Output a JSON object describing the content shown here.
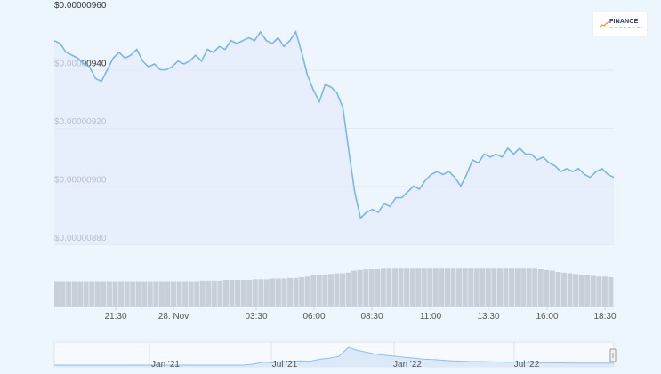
{
  "chart_data": {
    "type": "line",
    "y_ticks": [
      "$0.00000960",
      "$0.00000940",
      "$0.00000920",
      "$0.00000900",
      "$0.00000880"
    ],
    "y_values": [
      9.6e-06,
      9.4e-06,
      9.2e-06,
      9e-06,
      8.8e-06
    ],
    "ylim": [
      8.8e-06,
      9.6e-06
    ],
    "x_ticks": [
      "21:30",
      "28. Nov",
      "03:30",
      "06:00",
      "08:30",
      "11:00",
      "13:30",
      "16:00",
      "18:30"
    ],
    "navigator_ticks": [
      "Jan '21",
      "Jul '21",
      "Jan '22",
      "Jul '22"
    ],
    "series": [
      {
        "color": "#7cb5ec",
        "values": [
          9.5e-06,
          9.49e-06,
          9.46e-06,
          9.45e-06,
          9.44e-06,
          9.42e-06,
          9.41e-06,
          9.37e-06,
          9.36e-06,
          9.4e-06,
          9.44e-06,
          9.46e-06,
          9.44e-06,
          9.45e-06,
          9.47e-06,
          9.43e-06,
          9.41e-06,
          9.42e-06,
          9.4e-06,
          9.4e-06,
          9.41e-06,
          9.43e-06,
          9.42e-06,
          9.43e-06,
          9.45e-06,
          9.43e-06,
          9.47e-06,
          9.46e-06,
          9.48e-06,
          9.47e-06,
          9.5e-06,
          9.49e-06,
          9.5e-06,
          9.51e-06,
          9.5e-06,
          9.53e-06,
          9.5e-06,
          9.49e-06,
          9.51e-06,
          9.48e-06,
          9.5e-06,
          9.53e-06,
          9.46e-06,
          9.38e-06,
          9.33e-06,
          9.29e-06,
          9.35e-06,
          9.34e-06,
          9.32e-06,
          9.27e-06,
          9.12e-06,
          8.98e-06,
          8.89e-06,
          8.91e-06,
          8.92e-06,
          8.91e-06,
          8.94e-06,
          8.93e-06,
          8.96e-06,
          8.96e-06,
          8.98e-06,
          9e-06,
          8.99e-06,
          9.02e-06,
          9.04e-06,
          9.05e-06,
          9.04e-06,
          9.05e-06,
          9.03e-06,
          9e-06,
          9.04e-06,
          9.09e-06,
          9.08e-06,
          9.11e-06,
          9.1e-06,
          9.11e-06,
          9.1e-06,
          9.13e-06,
          9.11e-06,
          9.13e-06,
          9.11e-06,
          9.11e-06,
          9.09e-06,
          9.1e-06,
          9.08e-06,
          9.07e-06,
          9.05e-06,
          9.06e-06,
          9.05e-06,
          9.06e-06,
          9.04e-06,
          9.03e-06,
          9.05e-06,
          9.06e-06,
          9.04e-06,
          9.03e-06
        ],
        "volume": [
          0.38,
          0.38,
          0.38,
          0.38,
          0.38,
          0.38,
          0.38,
          0.38,
          0.38,
          0.38,
          0.38,
          0.38,
          0.38,
          0.38,
          0.38,
          0.38,
          0.38,
          0.38,
          0.38,
          0.38,
          0.38,
          0.38,
          0.38,
          0.38,
          0.38,
          0.39,
          0.39,
          0.39,
          0.39,
          0.4,
          0.4,
          0.4,
          0.4,
          0.4,
          0.41,
          0.41,
          0.41,
          0.42,
          0.42,
          0.42,
          0.43,
          0.43,
          0.44,
          0.45,
          0.47,
          0.48,
          0.48,
          0.49,
          0.5,
          0.5,
          0.51,
          0.54,
          0.55,
          0.56,
          0.56,
          0.56,
          0.57,
          0.57,
          0.57,
          0.57,
          0.57,
          0.57,
          0.57,
          0.57,
          0.57,
          0.57,
          0.57,
          0.57,
          0.57,
          0.57,
          0.57,
          0.57,
          0.57,
          0.57,
          0.57,
          0.57,
          0.57,
          0.57,
          0.57,
          0.57,
          0.57,
          0.57,
          0.57,
          0.56,
          0.55,
          0.54,
          0.52,
          0.51,
          0.5,
          0.49,
          0.48,
          0.47,
          0.46,
          0.45,
          0.45,
          0.44
        ]
      }
    ],
    "navigator_values": [
      0,
      0,
      0,
      0,
      0,
      0,
      0,
      0,
      0,
      0,
      0,
      0,
      0,
      0,
      0,
      0,
      0,
      0,
      0,
      0,
      0,
      0.05,
      0.15,
      0.12,
      0.18,
      0.2,
      0.22,
      0.2,
      0.3,
      0.35,
      0.45,
      0.9,
      0.75,
      0.65,
      0.55,
      0.5,
      0.45,
      0.4,
      0.35,
      0.3,
      0.28,
      0.25,
      0.22,
      0.2,
      0.18,
      0.18,
      0.17,
      0.16,
      0.15,
      0.15,
      0.14,
      0.13,
      0.12,
      0.12,
      0.11,
      0.1,
      0.1,
      0.1,
      0.1,
      0.1
    ]
  },
  "logo": {
    "text": "FINANCE"
  }
}
